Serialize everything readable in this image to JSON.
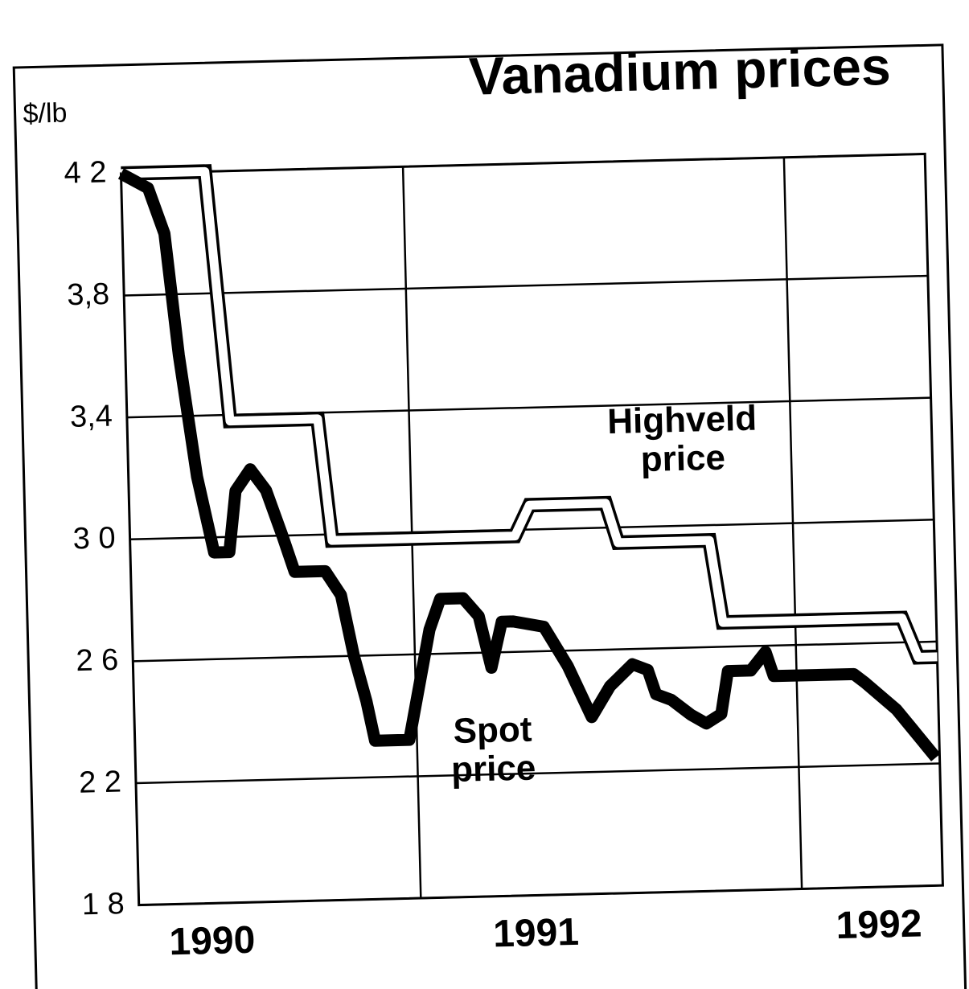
{
  "chart_data": {
    "type": "line",
    "title": "Vanadium prices",
    "y_label": "$/lb",
    "xlim": [
      1990.26,
      1992.37
    ],
    "xticks": [
      {
        "value": 1990.45,
        "label": "1990"
      },
      {
        "value": 1991.3,
        "label": "1991"
      },
      {
        "value": 1992.2,
        "label": "1992"
      }
    ],
    "xgrid": [
      1991,
      1992
    ],
    "ylim": [
      1.8,
      4.2
    ],
    "yticks": [
      {
        "value": 1.8,
        "label": "1 8"
      },
      {
        "value": 2.2,
        "label": "2 2"
      },
      {
        "value": 2.6,
        "label": "2 6"
      },
      {
        "value": 3.0,
        "label": "3 0"
      },
      {
        "value": 3.4,
        "label": "3,4"
      },
      {
        "value": 3.8,
        "label": "3,8"
      },
      {
        "value": 4.2,
        "label": "4 2"
      }
    ],
    "grid": true,
    "series": [
      {
        "name": "Highveld price",
        "color": "#ffffff",
        "x": [
          1990.26,
          1990.48,
          1990.53,
          1990.76,
          1990.79,
          1991.27,
          1991.31,
          1991.51,
          1991.54,
          1991.78,
          1991.81,
          1992.28,
          1992.32,
          1992.37
        ],
        "values": [
          4.2,
          4.2,
          3.38,
          3.38,
          2.98,
          2.98,
          3.08,
          3.08,
          2.95,
          2.95,
          2.68,
          2.68,
          2.55,
          2.55
        ]
      },
      {
        "name": "Spot price",
        "color": "#000000",
        "x": [
          1990.26,
          1990.33,
          1990.37,
          1990.4,
          1990.44,
          1990.48,
          1990.52,
          1990.54,
          1990.58,
          1990.62,
          1990.66,
          1990.69,
          1990.77,
          1990.81,
          1990.84,
          1990.87,
          1990.89,
          1990.98,
          1991.01,
          1991.04,
          1991.07,
          1991.13,
          1991.17,
          1991.2,
          1991.23,
          1991.26,
          1991.34,
          1991.4,
          1991.46,
          1991.51,
          1991.57,
          1991.61,
          1991.63,
          1991.67,
          1991.72,
          1991.76,
          1991.8,
          1991.82,
          1991.84,
          1991.88,
          1991.92,
          1991.94,
          1992.15,
          1992.18,
          1992.26,
          1992.36
        ],
        "values": [
          4.2,
          4.15,
          4.0,
          3.6,
          3.2,
          2.95,
          2.95,
          3.15,
          3.22,
          3.15,
          3.0,
          2.88,
          2.88,
          2.8,
          2.6,
          2.45,
          2.32,
          2.32,
          2.5,
          2.68,
          2.78,
          2.78,
          2.72,
          2.55,
          2.7,
          2.7,
          2.68,
          2.55,
          2.38,
          2.48,
          2.55,
          2.53,
          2.45,
          2.43,
          2.38,
          2.35,
          2.38,
          2.52,
          2.52,
          2.52,
          2.58,
          2.5,
          2.5,
          2.47,
          2.38,
          2.22
        ]
      }
    ]
  }
}
